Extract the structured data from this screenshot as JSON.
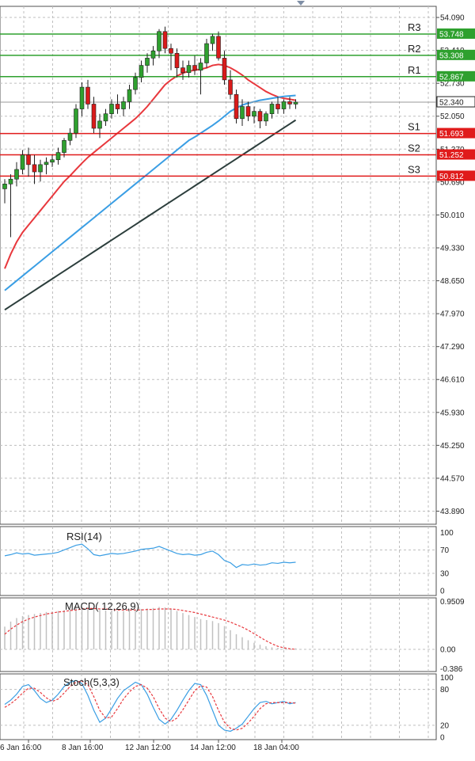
{
  "chart_data": [
    {
      "type": "candlestick",
      "panel": "price",
      "y_ticks": [
        "54.090",
        "53.410",
        "52.730",
        "52.050",
        "51.370",
        "50.690",
        "50.010",
        "49.330",
        "48.650",
        "47.970",
        "47.290",
        "46.610",
        "45.930",
        "45.250",
        "44.570",
        "43.890"
      ],
      "ylim": [
        43.62,
        54.32
      ],
      "levels": [
        {
          "name": "R3",
          "value": 53.748,
          "label": "53.748",
          "color": "#2ea02e"
        },
        {
          "name": "R2",
          "value": 53.308,
          "label": "53.308",
          "color": "#2ea02e"
        },
        {
          "name": "R1",
          "value": 52.867,
          "label": "52.867",
          "color": "#2ea02e"
        },
        {
          "name": "S1",
          "value": 51.693,
          "label": "51.693",
          "color": "#e01b1b"
        },
        {
          "name": "S2",
          "value": 51.252,
          "label": "51.252",
          "color": "#e01b1b"
        },
        {
          "name": "S3",
          "value": 50.812,
          "label": "50.812",
          "color": "#e01b1b"
        }
      ],
      "current_price": {
        "value": 52.34,
        "label": "52.340"
      },
      "candles": [
        [
          50.55,
          50.75,
          50.25,
          50.65
        ],
        [
          50.65,
          50.85,
          49.55,
          50.75
        ],
        [
          50.75,
          51.1,
          50.6,
          50.95
        ],
        [
          50.95,
          51.35,
          50.85,
          51.25
        ],
        [
          51.25,
          51.4,
          50.8,
          51.05
        ],
        [
          51.05,
          51.25,
          50.65,
          50.9
        ],
        [
          50.9,
          51.15,
          50.7,
          51.05
        ],
        [
          51.05,
          51.2,
          50.85,
          51.1
        ],
        [
          51.1,
          51.25,
          51.0,
          51.15
        ],
        [
          51.15,
          51.4,
          51.05,
          51.3
        ],
        [
          51.3,
          51.6,
          51.2,
          51.55
        ],
        [
          51.55,
          51.8,
          51.45,
          51.7
        ],
        [
          51.7,
          52.3,
          51.6,
          52.2
        ],
        [
          52.2,
          52.75,
          52.05,
          52.65
        ],
        [
          52.65,
          52.8,
          52.2,
          52.3
        ],
        [
          52.3,
          52.45,
          51.7,
          51.8
        ],
        [
          51.8,
          52.1,
          51.6,
          51.95
        ],
        [
          51.95,
          52.2,
          51.85,
          52.1
        ],
        [
          52.1,
          52.4,
          52.0,
          52.3
        ],
        [
          52.3,
          52.5,
          52.1,
          52.2
        ],
        [
          52.2,
          52.45,
          52.05,
          52.35
        ],
        [
          52.35,
          52.7,
          52.2,
          52.6
        ],
        [
          52.6,
          52.95,
          52.5,
          52.85
        ],
        [
          52.85,
          53.2,
          52.75,
          53.1
        ],
        [
          53.1,
          53.35,
          52.95,
          53.25
        ],
        [
          53.25,
          53.5,
          53.1,
          53.4
        ],
        [
          53.4,
          53.85,
          53.25,
          53.8
        ],
        [
          53.8,
          53.9,
          53.35,
          53.45
        ],
        [
          53.45,
          53.55,
          53.0,
          53.35
        ],
        [
          53.35,
          53.45,
          52.85,
          53.05
        ],
        [
          53.05,
          53.2,
          52.8,
          52.95
        ],
        [
          52.95,
          53.2,
          52.85,
          53.1
        ],
        [
          53.1,
          53.3,
          52.9,
          53.0
        ],
        [
          53.0,
          53.25,
          52.5,
          53.15
        ],
        [
          53.15,
          53.65,
          53.05,
          53.55
        ],
        [
          53.55,
          53.75,
          53.4,
          53.7
        ],
        [
          53.7,
          53.8,
          53.2,
          53.25
        ],
        [
          53.25,
          53.4,
          52.7,
          52.8
        ],
        [
          52.8,
          53.0,
          52.4,
          52.5
        ],
        [
          52.5,
          52.6,
          51.9,
          52.0
        ],
        [
          52.0,
          52.4,
          51.85,
          52.25
        ],
        [
          52.25,
          52.35,
          51.95,
          52.05
        ],
        [
          52.05,
          52.25,
          51.9,
          52.15
        ],
        [
          52.15,
          52.2,
          51.8,
          51.95
        ],
        [
          51.95,
          52.15,
          51.85,
          52.1
        ],
        [
          52.1,
          52.35,
          52.0,
          52.3
        ],
        [
          52.3,
          52.45,
          52.1,
          52.2
        ],
        [
          52.2,
          52.4,
          52.1,
          52.35
        ],
        [
          52.35,
          52.45,
          52.2,
          52.3
        ],
        [
          52.3,
          52.4,
          52.2,
          52.34
        ]
      ],
      "moving_averages": [
        {
          "color": "#e8383d",
          "values": [
            48.9,
            49.2,
            49.45,
            49.65,
            49.8,
            49.95,
            50.1,
            50.25,
            50.4,
            50.55,
            50.7,
            50.82,
            50.95,
            51.08,
            51.2,
            51.3,
            51.4,
            51.5,
            51.6,
            51.7,
            51.8,
            51.9,
            52.0,
            52.12,
            52.25,
            52.4,
            52.55,
            52.7,
            52.8,
            52.88,
            52.94,
            52.98,
            53.0,
            53.02,
            53.05,
            53.1,
            53.12,
            53.1,
            53.05,
            52.98,
            52.9,
            52.8,
            52.72,
            52.64,
            52.56,
            52.5,
            52.45,
            52.42,
            52.4,
            52.38
          ]
        },
        {
          "color": "#3a9ee4",
          "values": [
            48.45,
            48.55,
            48.65,
            48.75,
            48.85,
            48.95,
            49.05,
            49.15,
            49.25,
            49.35,
            49.45,
            49.55,
            49.65,
            49.75,
            49.85,
            49.95,
            50.05,
            50.15,
            50.25,
            50.35,
            50.45,
            50.55,
            50.65,
            50.75,
            50.85,
            50.95,
            51.05,
            51.15,
            51.25,
            51.35,
            51.45,
            51.55,
            51.62,
            51.7,
            51.78,
            51.86,
            51.95,
            52.05,
            52.15,
            52.22,
            52.28,
            52.32,
            52.35,
            52.38,
            52.4,
            52.42,
            52.44,
            52.46,
            52.47,
            52.48
          ]
        },
        {
          "color": "#2c3e3c",
          "values": [
            48.05,
            48.13,
            48.21,
            48.29,
            48.37,
            48.45,
            48.53,
            48.61,
            48.69,
            48.77,
            48.85,
            48.93,
            49.01,
            49.09,
            49.17,
            49.25,
            49.33,
            49.41,
            49.49,
            49.57,
            49.65,
            49.73,
            49.81,
            49.89,
            49.97,
            50.05,
            50.13,
            50.21,
            50.29,
            50.37,
            50.45,
            50.53,
            50.61,
            50.69,
            50.77,
            50.85,
            50.93,
            51.01,
            51.09,
            51.17,
            51.25,
            51.33,
            51.41,
            51.49,
            51.57,
            51.65,
            51.73,
            51.81,
            51.89,
            51.97
          ]
        }
      ],
      "colors": {
        "up": "#2fa02f",
        "down": "#d91a1a",
        "grid": "#bfbfbf",
        "axis": "#404040"
      }
    },
    {
      "type": "line",
      "panel": "rsi",
      "title": "RSI(14)",
      "y_ticks": [
        "100",
        "70",
        "30",
        "0"
      ],
      "ylim": [
        0,
        100
      ],
      "values": [
        60,
        62,
        65,
        63,
        64,
        61,
        62,
        63,
        64,
        66,
        70,
        74,
        78,
        80,
        72,
        62,
        60,
        62,
        64,
        63,
        64,
        66,
        68,
        71,
        72,
        73,
        76,
        72,
        68,
        64,
        62,
        63,
        61,
        62,
        66,
        68,
        62,
        52,
        48,
        40,
        45,
        44,
        46,
        44,
        45,
        48,
        47,
        49,
        48,
        49
      ],
      "color": "#3a9ee4"
    },
    {
      "type": "bar",
      "panel": "macd",
      "title": "MACD( 12,26,9)",
      "y_ticks": [
        "0.9509",
        "0.00",
        "-0.386"
      ],
      "ylim": [
        -0.386,
        0.9509
      ],
      "values": [
        0.45,
        0.55,
        0.62,
        0.66,
        0.68,
        0.7,
        0.72,
        0.74,
        0.75,
        0.76,
        0.78,
        0.8,
        0.82,
        0.84,
        0.83,
        0.8,
        0.78,
        0.77,
        0.77,
        0.76,
        0.76,
        0.77,
        0.78,
        0.8,
        0.81,
        0.82,
        0.84,
        0.83,
        0.8,
        0.76,
        0.72,
        0.68,
        0.64,
        0.6,
        0.58,
        0.56,
        0.52,
        0.46,
        0.38,
        0.3,
        0.24,
        0.18,
        0.13,
        0.09,
        0.06,
        0.04,
        0.03,
        0.02,
        0.02,
        0.02
      ],
      "signal": [
        0.3,
        0.4,
        0.48,
        0.55,
        0.6,
        0.64,
        0.67,
        0.7,
        0.72,
        0.74,
        0.75,
        0.77,
        0.78,
        0.8,
        0.81,
        0.81,
        0.8,
        0.8,
        0.79,
        0.78,
        0.78,
        0.78,
        0.78,
        0.78,
        0.79,
        0.79,
        0.8,
        0.8,
        0.8,
        0.79,
        0.77,
        0.75,
        0.73,
        0.7,
        0.67,
        0.64,
        0.61,
        0.58,
        0.54,
        0.49,
        0.44,
        0.38,
        0.31,
        0.24,
        0.17,
        0.11,
        0.06,
        0.03,
        0.01,
        0.0
      ],
      "hist_color": "#c0c0c0",
      "signal_color": "#e8383d"
    },
    {
      "type": "line",
      "panel": "stoch",
      "title": "Stoch(5,3,3)",
      "y_ticks": [
        "100",
        "80",
        "20",
        "0"
      ],
      "ylim": [
        0,
        100
      ],
      "series": [
        {
          "values": [
            55,
            62,
            72,
            85,
            88,
            78,
            65,
            58,
            62,
            72,
            85,
            92,
            95,
            90,
            70,
            45,
            25,
            32,
            48,
            65,
            78,
            85,
            92,
            88,
            72,
            50,
            30,
            22,
            30,
            45,
            62,
            78,
            90,
            88,
            70,
            45,
            20,
            12,
            10,
            15,
            22,
            35,
            48,
            58,
            60,
            56,
            58,
            60,
            56,
            58
          ],
          "color": "#3a9ee4"
        },
        {
          "values": [
            50,
            56,
            64,
            74,
            82,
            82,
            75,
            66,
            60,
            64,
            74,
            85,
            92,
            94,
            88,
            68,
            45,
            32,
            34,
            48,
            64,
            76,
            85,
            88,
            82,
            68,
            48,
            32,
            26,
            32,
            46,
            62,
            78,
            86,
            84,
            68,
            45,
            25,
            15,
            12,
            15,
            24,
            35,
            48,
            56,
            58,
            58,
            58,
            58,
            57
          ],
          "color": "#e8383d",
          "dashed": true
        }
      ]
    }
  ],
  "x_labels": [
    "6 Jan 16:00",
    "8 Jan 16:00",
    "12 Jan 12:00",
    "14 Jan 12:00",
    "18 Jan 04:00"
  ]
}
